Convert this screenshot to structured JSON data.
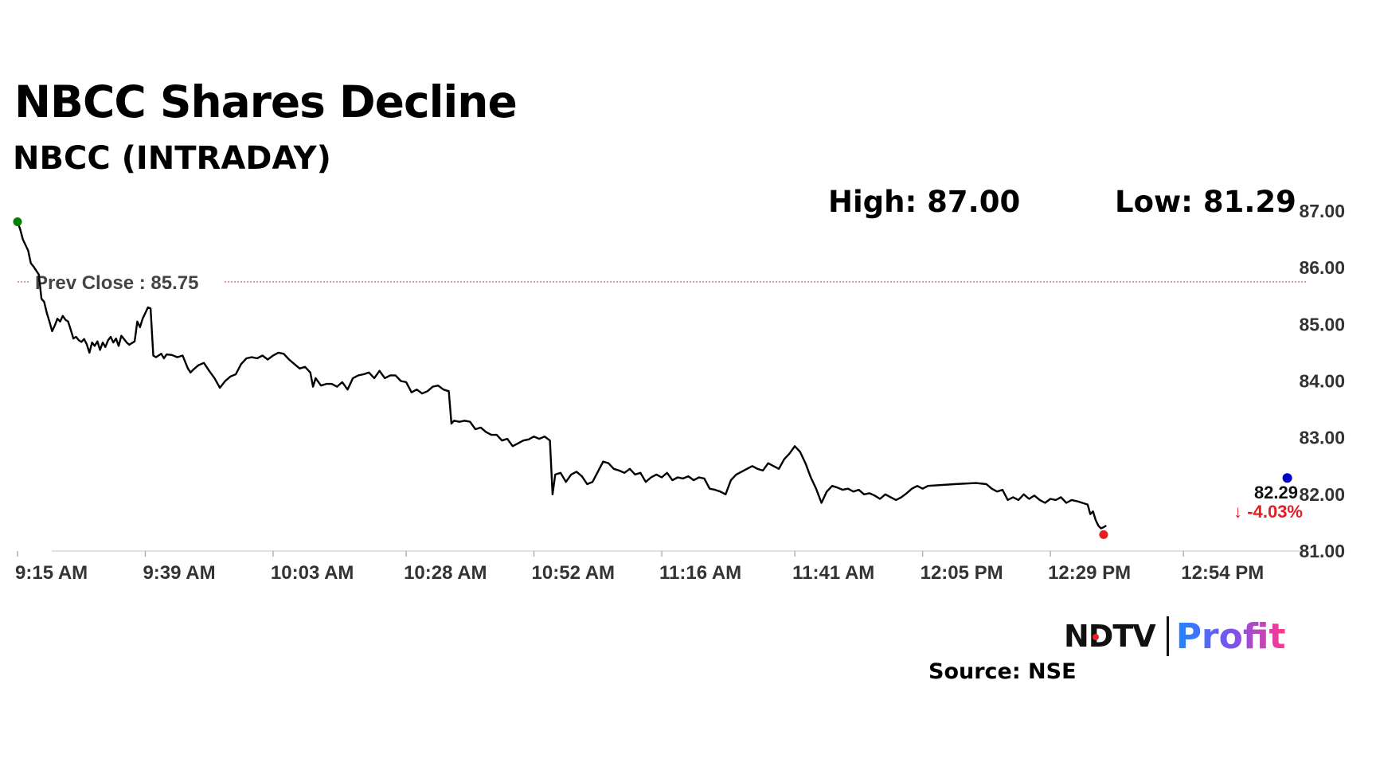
{
  "title": "NBCC Shares Decline",
  "subtitle": "NBCC (INTRADAY)",
  "high_label": "High: 87.00",
  "low_label": "Low: 81.29",
  "source": "Source: NSE",
  "brand": {
    "ndtv": "NDTV",
    "profit": "Profit"
  },
  "chart_data": {
    "type": "line",
    "prev_close": 85.75,
    "prev_close_label": "Prev Close : 85.75",
    "ylim": [
      81.0,
      87.0
    ],
    "y_ticks": [
      "87.00",
      "86.00",
      "85.00",
      "84.00",
      "83.00",
      "82.00",
      "81.00"
    ],
    "x_tick_labels": [
      "9:15 AM",
      "9:39 AM",
      "10:03 AM",
      "10:28 AM",
      "10:52 AM",
      "11:16 AM",
      "11:41 AM",
      "12:05 PM",
      "12:29 PM",
      "12:54 PM"
    ],
    "x_ticks_min": [
      0,
      24,
      48,
      73,
      97,
      121,
      146,
      170,
      194,
      219
    ],
    "x_range_min": [
      0,
      242
    ],
    "last_price": "82.29",
    "change": "↓ -4.03%",
    "high": 87.0,
    "low": 81.29,
    "colors": {
      "line": "#000000",
      "prev_close": "#c0504d",
      "start_marker": "#008000",
      "low_marker": "#e31e24",
      "end_marker": "#0000cc",
      "change": "#e31e24",
      "axis_text": "#333333"
    },
    "series": [
      {
        "values": [
          [
            0,
            86.81
          ],
          [
            0.5,
            86.68
          ],
          [
            1,
            86.5
          ],
          [
            2,
            86.3
          ],
          [
            2.5,
            86.08
          ],
          [
            3,
            86.02
          ],
          [
            4,
            85.88
          ],
          [
            4.5,
            85.45
          ],
          [
            5,
            85.4
          ],
          [
            5.5,
            85.2
          ],
          [
            6,
            85.05
          ],
          [
            6.5,
            84.88
          ],
          [
            7,
            84.98
          ],
          [
            7.5,
            85.1
          ],
          [
            8,
            85.05
          ],
          [
            8.5,
            85.15
          ],
          [
            9,
            85.08
          ],
          [
            9.5,
            85.05
          ],
          [
            10,
            84.9
          ],
          [
            10.5,
            84.75
          ],
          [
            11,
            84.78
          ],
          [
            11.5,
            84.72
          ],
          [
            12,
            84.69
          ],
          [
            12.5,
            84.74
          ],
          [
            13,
            84.65
          ],
          [
            13.5,
            84.5
          ],
          [
            14,
            84.68
          ],
          [
            14.5,
            84.62
          ],
          [
            15,
            84.7
          ],
          [
            15.5,
            84.55
          ],
          [
            16,
            84.68
          ],
          [
            16.5,
            84.6
          ],
          [
            17,
            84.72
          ],
          [
            17.5,
            84.78
          ],
          [
            18,
            84.68
          ],
          [
            18.5,
            84.75
          ],
          [
            19,
            84.62
          ],
          [
            19.5,
            84.8
          ],
          [
            20,
            84.74
          ],
          [
            20.5,
            84.68
          ],
          [
            21,
            84.64
          ],
          [
            21.5,
            84.67
          ],
          [
            22,
            84.7
          ],
          [
            22.5,
            85.05
          ],
          [
            23,
            84.95
          ],
          [
            23.5,
            85.1
          ],
          [
            24,
            85.2
          ],
          [
            24.5,
            85.3
          ],
          [
            25,
            85.28
          ],
          [
            25.5,
            84.45
          ],
          [
            26,
            84.42
          ],
          [
            27,
            84.48
          ],
          [
            27.5,
            84.4
          ],
          [
            28,
            84.47
          ],
          [
            29,
            84.46
          ],
          [
            30,
            84.42
          ],
          [
            31,
            84.45
          ],
          [
            32,
            84.22
          ],
          [
            32.5,
            84.15
          ],
          [
            33,
            84.2
          ],
          [
            34,
            84.28
          ],
          [
            35,
            84.32
          ],
          [
            36,
            84.18
          ],
          [
            37,
            84.05
          ],
          [
            38,
            83.88
          ],
          [
            39,
            84.0
          ],
          [
            40,
            84.08
          ],
          [
            41,
            84.12
          ],
          [
            42,
            84.3
          ],
          [
            43,
            84.4
          ],
          [
            44,
            84.42
          ],
          [
            45,
            84.4
          ],
          [
            46,
            84.45
          ],
          [
            47,
            84.38
          ],
          [
            48,
            84.45
          ],
          [
            49,
            84.5
          ],
          [
            50,
            84.48
          ],
          [
            51,
            84.38
          ],
          [
            52,
            84.3
          ],
          [
            53,
            84.22
          ],
          [
            54,
            84.25
          ],
          [
            55,
            84.15
          ],
          [
            55.5,
            83.9
          ],
          [
            56,
            84.05
          ],
          [
            57,
            83.92
          ],
          [
            58,
            83.95
          ],
          [
            59,
            83.95
          ],
          [
            60,
            83.9
          ],
          [
            61,
            83.98
          ],
          [
            62,
            83.85
          ],
          [
            63,
            84.05
          ],
          [
            64,
            84.1
          ],
          [
            65,
            84.12
          ],
          [
            66,
            84.15
          ],
          [
            67,
            84.05
          ],
          [
            68,
            84.18
          ],
          [
            69,
            84.05
          ],
          [
            70,
            84.1
          ],
          [
            71,
            84.1
          ],
          [
            72,
            84.0
          ],
          [
            73,
            83.98
          ],
          [
            74,
            83.8
          ],
          [
            75,
            83.85
          ],
          [
            76,
            83.78
          ],
          [
            77,
            83.82
          ],
          [
            78,
            83.9
          ],
          [
            79,
            83.92
          ],
          [
            80,
            83.85
          ],
          [
            81,
            83.82
          ],
          [
            81.5,
            83.25
          ],
          [
            82,
            83.3
          ],
          [
            83,
            83.28
          ],
          [
            84,
            83.3
          ],
          [
            85,
            83.28
          ],
          [
            86,
            83.15
          ],
          [
            87,
            83.18
          ],
          [
            88,
            83.1
          ],
          [
            89,
            83.05
          ],
          [
            90,
            83.05
          ],
          [
            91,
            82.95
          ],
          [
            92,
            82.98
          ],
          [
            93,
            82.85
          ],
          [
            94,
            82.9
          ],
          [
            95,
            82.95
          ],
          [
            96,
            82.97
          ],
          [
            97,
            83.02
          ],
          [
            98,
            82.98
          ],
          [
            99,
            83.02
          ],
          [
            100,
            82.95
          ],
          [
            100.5,
            82.0
          ],
          [
            101,
            82.35
          ],
          [
            102,
            82.38
          ],
          [
            103,
            82.22
          ],
          [
            104,
            82.35
          ],
          [
            105,
            82.4
          ],
          [
            106,
            82.32
          ],
          [
            107,
            82.18
          ],
          [
            108,
            82.22
          ],
          [
            109,
            82.4
          ],
          [
            110,
            82.58
          ],
          [
            111,
            82.55
          ],
          [
            112,
            82.45
          ],
          [
            113,
            82.42
          ],
          [
            114,
            82.38
          ],
          [
            115,
            82.45
          ],
          [
            116,
            82.35
          ],
          [
            117,
            82.38
          ],
          [
            118,
            82.22
          ],
          [
            119,
            82.3
          ],
          [
            120,
            82.35
          ],
          [
            121,
            82.3
          ],
          [
            122,
            82.38
          ],
          [
            123,
            82.25
          ],
          [
            124,
            82.3
          ],
          [
            125,
            82.28
          ],
          [
            126,
            82.32
          ],
          [
            127,
            82.25
          ],
          [
            128,
            82.3
          ],
          [
            129,
            82.28
          ],
          [
            130,
            82.1
          ],
          [
            131,
            82.08
          ],
          [
            132,
            82.05
          ],
          [
            133,
            82.0
          ],
          [
            134,
            82.25
          ],
          [
            135,
            82.35
          ],
          [
            136,
            82.4
          ],
          [
            137,
            82.45
          ],
          [
            138,
            82.5
          ],
          [
            139,
            82.45
          ],
          [
            140,
            82.42
          ],
          [
            141,
            82.55
          ],
          [
            142,
            82.5
          ],
          [
            143,
            82.45
          ],
          [
            144,
            82.62
          ],
          [
            145,
            82.72
          ],
          [
            146,
            82.85
          ],
          [
            147,
            82.75
          ],
          [
            148,
            82.55
          ],
          [
            149,
            82.3
          ],
          [
            150,
            82.1
          ],
          [
            151,
            81.85
          ],
          [
            152,
            82.05
          ],
          [
            153,
            82.15
          ],
          [
            154,
            82.12
          ],
          [
            155,
            82.08
          ],
          [
            156,
            82.1
          ],
          [
            157,
            82.05
          ],
          [
            158,
            82.08
          ],
          [
            159,
            82.0
          ],
          [
            160,
            82.02
          ],
          [
            161,
            81.98
          ],
          [
            162,
            81.92
          ],
          [
            163,
            82.0
          ],
          [
            164,
            81.95
          ],
          [
            165,
            81.9
          ],
          [
            166,
            81.95
          ],
          [
            167,
            82.02
          ],
          [
            168,
            82.1
          ],
          [
            169,
            82.15
          ],
          [
            170,
            82.1
          ],
          [
            171,
            82.15
          ],
          [
            176,
            82.18
          ],
          [
            180,
            82.2
          ],
          [
            182,
            82.18
          ],
          [
            183,
            82.1
          ],
          [
            184,
            82.05
          ],
          [
            185,
            82.08
          ],
          [
            186,
            81.9
          ],
          [
            187,
            81.95
          ],
          [
            188,
            81.9
          ],
          [
            189,
            82.0
          ],
          [
            190,
            81.92
          ],
          [
            191,
            81.98
          ],
          [
            192,
            81.9
          ],
          [
            193,
            81.85
          ],
          [
            194,
            81.92
          ],
          [
            195,
            81.9
          ],
          [
            196,
            81.95
          ],
          [
            197,
            81.85
          ],
          [
            198,
            81.9
          ],
          [
            199,
            81.88
          ],
          [
            200,
            81.85
          ],
          [
            201,
            81.82
          ],
          [
            201.5,
            81.65
          ],
          [
            202,
            81.7
          ],
          [
            202.5,
            81.55
          ],
          [
            203,
            81.45
          ],
          [
            203.5,
            81.4
          ],
          [
            204,
            81.42
          ],
          [
            204.5,
            81.45
          ]
        ]
      }
    ]
  }
}
